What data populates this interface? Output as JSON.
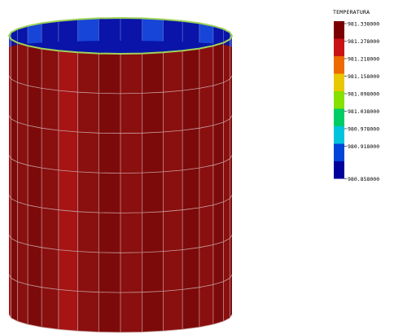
{
  "legend": {
    "title": "TEMPERATURA",
    "levels": [
      {
        "label": "981.338000",
        "color": "#7a0000"
      },
      {
        "label": "981.278000",
        "color": "#c81414"
      },
      {
        "label": "981.218000",
        "color": "#ec6a00"
      },
      {
        "label": "981.158000",
        "color": "#e8c800"
      },
      {
        "label": "981.098000",
        "color": "#86e000"
      },
      {
        "label": "981.038000",
        "color": "#00cc66"
      },
      {
        "label": "980.978000",
        "color": "#00c4dc"
      },
      {
        "label": "980.918000",
        "color": "#0044d8"
      },
      {
        "label": "980.858000",
        "color": "#00009a"
      }
    ]
  },
  "model": {
    "name": "cylindrical-tank",
    "colors": {
      "shell_dark": "#7d0a0a",
      "shell_mid": "#8a0f0f",
      "shell_hot": "#a61414",
      "interior_dark": "#0a14a8",
      "interior_light": "#1a4ee0",
      "rim": "#9fd35a",
      "mesh": "#c8a0a0"
    }
  }
}
